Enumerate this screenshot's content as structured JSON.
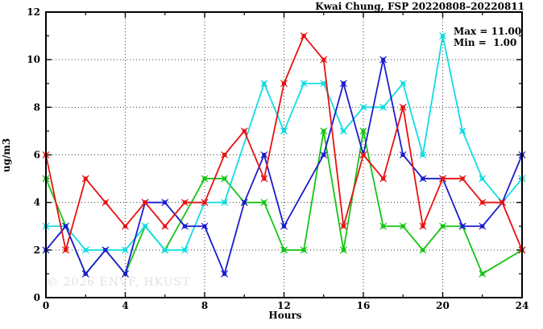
{
  "title": "Kwai Chung, FSP 20220808–20220811",
  "stats": {
    "max_label": "Max = 11.00",
    "min_label": "Min =  1.00"
  },
  "watermark": "© 2026 ENVF, HKUST",
  "chart_data": {
    "type": "line",
    "title": "Kwai Chung, FSP 20220808–20220811",
    "xlabel": "Hours",
    "ylabel": "ug/m3",
    "xlim": [
      0,
      24
    ],
    "ylim": [
      0,
      12
    ],
    "x_ticks": [
      0,
      4,
      8,
      12,
      16,
      20,
      24
    ],
    "x_minor_ticks": [
      2,
      6,
      10,
      14,
      18,
      22
    ],
    "y_ticks": [
      0,
      2,
      4,
      6,
      8,
      10,
      12
    ],
    "y_minor_ticks": [
      1,
      3,
      5,
      7,
      9,
      11
    ],
    "grid": true,
    "legend_position": "none",
    "max": 11.0,
    "min": 1.0,
    "x": [
      0,
      1,
      2,
      3,
      4,
      5,
      6,
      7,
      8,
      9,
      10,
      11,
      12,
      13,
      14,
      15,
      16,
      17,
      18,
      19,
      20,
      21,
      22,
      23,
      24
    ],
    "series": [
      {
        "name": "series-green",
        "color": "#15c415",
        "values": [
          5,
          3,
          1,
          2,
          1,
          3,
          2,
          null,
          5,
          5,
          4,
          4,
          2,
          2,
          7,
          2,
          7,
          3,
          3,
          2,
          3,
          3,
          1,
          null,
          2
        ]
      },
      {
        "name": "series-cyan",
        "color": "#10dde2",
        "values": [
          3,
          3,
          2,
          2,
          2,
          3,
          2,
          2,
          4,
          4,
          null,
          9,
          7,
          9,
          9,
          7,
          8,
          8,
          9,
          6,
          11,
          7,
          5,
          4,
          5
        ]
      },
      {
        "name": "series-blue",
        "color": "#1c1ccd",
        "values": [
          2,
          3,
          1,
          2,
          1,
          4,
          4,
          3,
          3,
          1,
          4,
          6,
          3,
          null,
          6,
          9,
          6,
          10,
          6,
          5,
          5,
          3,
          3,
          4,
          6
        ]
      },
      {
        "name": "series-red",
        "color": "#e81111",
        "values": [
          6,
          2,
          5,
          4,
          3,
          4,
          3,
          4,
          4,
          6,
          7,
          5,
          9,
          11,
          10,
          3,
          6,
          5,
          8,
          3,
          5,
          5,
          4,
          4,
          2
        ]
      }
    ]
  },
  "layout_colors": {
    "axis": "#000000",
    "grid": "#3a3a3a",
    "background": "#ffffff",
    "watermark": "#e2e2e2"
  }
}
